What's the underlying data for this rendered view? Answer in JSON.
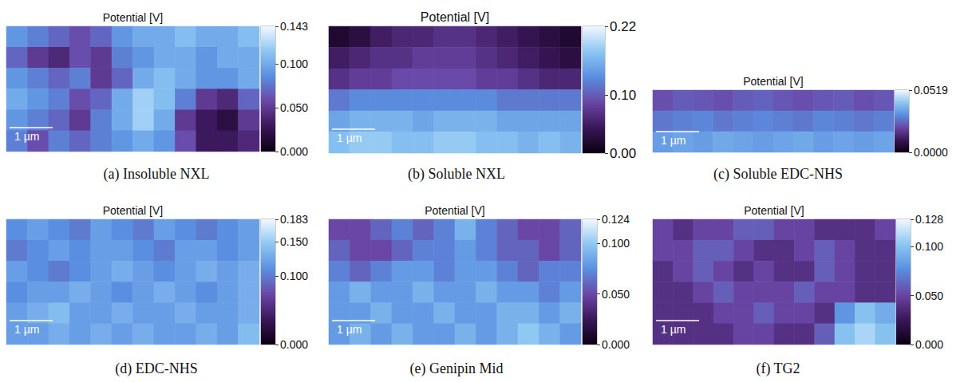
{
  "chart_data": [
    {
      "type": "heatmap",
      "title": "Potential [V]",
      "caption": "(a) Insoluble NXL",
      "scale_bar": "1 µm",
      "tick_labels": false,
      "cells": [
        [
          0.09,
          0.08,
          0.07,
          0.06,
          0.07,
          0.09,
          0.1,
          0.1,
          0.11,
          0.1,
          0.1,
          0.11
        ],
        [
          0.07,
          0.05,
          0.04,
          0.06,
          0.05,
          0.08,
          0.09,
          0.1,
          0.1,
          0.09,
          0.1,
          0.1
        ],
        [
          0.09,
          0.08,
          0.07,
          0.08,
          0.05,
          0.07,
          0.1,
          0.11,
          0.1,
          0.09,
          0.09,
          0.1
        ],
        [
          0.1,
          0.09,
          0.08,
          0.06,
          0.07,
          0.1,
          0.12,
          0.11,
          0.08,
          0.05,
          0.04,
          0.07
        ],
        [
          0.09,
          0.08,
          0.07,
          0.05,
          0.08,
          0.1,
          0.12,
          0.1,
          0.05,
          0.03,
          0.02,
          0.05
        ],
        [
          0.08,
          0.06,
          0.08,
          0.07,
          0.08,
          0.09,
          0.1,
          0.09,
          0.06,
          0.03,
          0.03,
          0.04
        ]
      ],
      "colorbar_range": [
        0,
        0.143
      ],
      "colorbar_ticks": [
        {
          "value": 0,
          "label": "0.000"
        },
        {
          "value": 0.05,
          "label": "0.050"
        },
        {
          "value": 0.1,
          "label": "0.100"
        },
        0.143
      ]
    },
    {
      "type": "heatmap",
      "title": "Potential [V]",
      "caption": "(b) Soluble NXL",
      "scale_bar": "1 µm",
      "tick_labels": false,
      "cells": [
        [
          0.02,
          0.03,
          0.05,
          0.06,
          0.06,
          0.07,
          0.07,
          0.06,
          0.05,
          0.04,
          0.03,
          0.02
        ],
        [
          0.05,
          0.06,
          0.07,
          0.07,
          0.08,
          0.08,
          0.08,
          0.07,
          0.06,
          0.05,
          0.04,
          0.03
        ],
        [
          0.07,
          0.08,
          0.08,
          0.09,
          0.09,
          0.09,
          0.09,
          0.08,
          0.08,
          0.07,
          0.06,
          0.06
        ],
        [
          0.12,
          0.13,
          0.13,
          0.13,
          0.13,
          0.13,
          0.13,
          0.13,
          0.12,
          0.12,
          0.12,
          0.12
        ],
        [
          0.15,
          0.16,
          0.16,
          0.16,
          0.15,
          0.16,
          0.16,
          0.16,
          0.15,
          0.15,
          0.15,
          0.15
        ],
        [
          0.17,
          0.18,
          0.18,
          0.17,
          0.17,
          0.18,
          0.18,
          0.17,
          0.17,
          0.16,
          0.17,
          0.16
        ]
      ],
      "colorbar_range": [
        0,
        0.22
      ],
      "colorbar_ticks": [
        {
          "value": 0,
          "label": "0.00"
        },
        {
          "value": 0.1,
          "label": "0.10"
        },
        0.22
      ]
    },
    {
      "type": "heatmap",
      "title": "Potential [V]",
      "caption": "(c) Soluble EDC-NHS",
      "scale_bar": "1 µm",
      "tick_labels": false,
      "cells": [
        [
          0.022,
          0.024,
          0.023,
          0.022,
          0.024,
          0.025,
          0.023,
          0.022,
          0.023,
          0.024,
          0.022,
          0.023
        ],
        [
          0.028,
          0.029,
          0.03,
          0.028,
          0.029,
          0.03,
          0.029,
          0.028,
          0.03,
          0.029,
          0.028,
          0.029
        ],
        [
          0.034,
          0.035,
          0.034,
          0.036,
          0.035,
          0.034,
          0.035,
          0.036,
          0.034,
          0.035,
          0.034,
          0.035
        ]
      ],
      "colorbar_range": [
        0,
        0.0519
      ],
      "colorbar_ticks": [
        {
          "value": 0,
          "label": "0.0000"
        },
        0.0519
      ]
    },
    {
      "type": "heatmap",
      "title": "Potential [V]",
      "caption": "(d) EDC-NHS",
      "scale_bar": "1 µm",
      "tick_labels": false,
      "cells": [
        [
          0.11,
          0.12,
          0.11,
          0.1,
          0.12,
          0.11,
          0.1,
          0.12,
          0.11,
          0.1,
          0.11,
          0.12
        ],
        [
          0.1,
          0.11,
          0.12,
          0.11,
          0.12,
          0.12,
          0.11,
          0.1,
          0.12,
          0.12,
          0.11,
          0.12
        ],
        [
          0.12,
          0.11,
          0.1,
          0.11,
          0.12,
          0.13,
          0.12,
          0.11,
          0.12,
          0.13,
          0.12,
          0.13
        ],
        [
          0.11,
          0.12,
          0.12,
          0.13,
          0.12,
          0.11,
          0.12,
          0.13,
          0.12,
          0.11,
          0.12,
          0.13
        ],
        [
          0.12,
          0.13,
          0.14,
          0.12,
          0.12,
          0.13,
          0.12,
          0.12,
          0.13,
          0.12,
          0.12,
          0.13
        ],
        [
          0.12,
          0.12,
          0.13,
          0.12,
          0.13,
          0.12,
          0.13,
          0.12,
          0.12,
          0.13,
          0.12,
          0.14
        ]
      ],
      "colorbar_range": [
        0,
        0.183
      ],
      "colorbar_ticks": [
        {
          "value": 0,
          "label": "0.000"
        },
        {
          "value": 0.1,
          "label": "0.100"
        },
        {
          "value": 0.15,
          "label": "0.150"
        },
        0.183
      ]
    },
    {
      "type": "heatmap",
      "title": "Potential [V]",
      "caption": "(e) Genipin Mid",
      "scale_bar": "1 µm",
      "tick_labels": false,
      "cells": [
        [
          0.05,
          0.05,
          0.06,
          0.07,
          0.06,
          0.07,
          0.09,
          0.07,
          0.06,
          0.05,
          0.05,
          0.06
        ],
        [
          0.06,
          0.05,
          0.05,
          0.06,
          0.07,
          0.07,
          0.08,
          0.07,
          0.06,
          0.06,
          0.05,
          0.06
        ],
        [
          0.07,
          0.06,
          0.07,
          0.08,
          0.08,
          0.07,
          0.08,
          0.08,
          0.07,
          0.06,
          0.07,
          0.07
        ],
        [
          0.08,
          0.09,
          0.08,
          0.08,
          0.09,
          0.08,
          0.08,
          0.09,
          0.08,
          0.08,
          0.07,
          0.08
        ],
        [
          0.08,
          0.08,
          0.09,
          0.08,
          0.08,
          0.09,
          0.08,
          0.08,
          0.09,
          0.09,
          0.08,
          0.09
        ],
        [
          0.08,
          0.09,
          0.08,
          0.09,
          0.08,
          0.08,
          0.09,
          0.08,
          0.09,
          0.1,
          0.09,
          0.08
        ]
      ],
      "colorbar_range": [
        0,
        0.124
      ],
      "colorbar_ticks": [
        {
          "value": 0,
          "label": "0.000"
        },
        {
          "value": 0.05,
          "label": "0.050"
        },
        {
          "value": 0.1,
          "label": "0.100"
        },
        0.124
      ]
    },
    {
      "type": "heatmap",
      "title": "Potential [V]",
      "caption": "(f) TG2",
      "scale_bar": "1 µm",
      "tick_labels": false,
      "cells": [
        [
          0.05,
          0.04,
          0.05,
          0.05,
          0.06,
          0.06,
          0.05,
          0.05,
          0.04,
          0.04,
          0.04,
          0.05
        ],
        [
          0.05,
          0.05,
          0.06,
          0.06,
          0.05,
          0.04,
          0.04,
          0.05,
          0.06,
          0.05,
          0.04,
          0.04
        ],
        [
          0.04,
          0.05,
          0.06,
          0.05,
          0.04,
          0.05,
          0.04,
          0.04,
          0.06,
          0.05,
          0.04,
          0.04
        ],
        [
          0.04,
          0.04,
          0.05,
          0.06,
          0.05,
          0.05,
          0.05,
          0.06,
          0.05,
          0.05,
          0.04,
          0.04
        ],
        [
          0.04,
          0.04,
          0.04,
          0.05,
          0.05,
          0.06,
          0.05,
          0.05,
          0.04,
          0.08,
          0.1,
          0.09
        ],
        [
          0.04,
          0.04,
          0.04,
          0.04,
          0.05,
          0.05,
          0.04,
          0.04,
          0.06,
          0.1,
          0.11,
          0.1
        ]
      ],
      "colorbar_range": [
        0,
        0.128
      ],
      "colorbar_ticks": [
        {
          "value": 0,
          "label": "0.000"
        },
        {
          "value": 0.05,
          "label": "0.050"
        },
        {
          "value": 0.1,
          "label": "0.100"
        },
        0.128
      ]
    }
  ]
}
